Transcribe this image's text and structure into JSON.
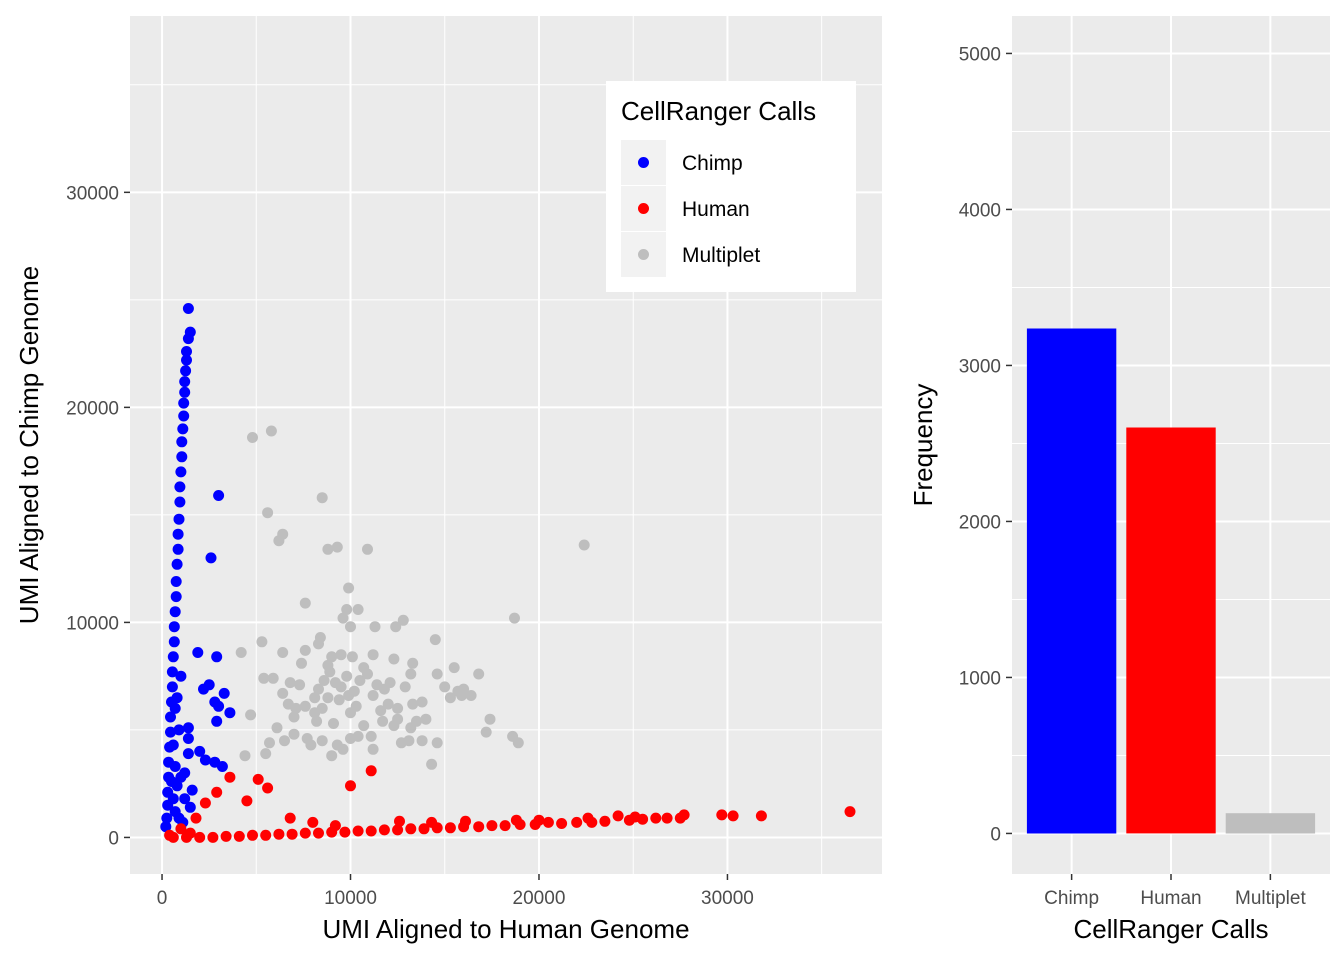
{
  "colors": {
    "panel_bg": "#EBEBEB",
    "grid": "#FFFFFF",
    "axis_text": "#4D4D4D",
    "title_text": "#000000",
    "chimp": "#0000FF",
    "human": "#FF0000",
    "multiplet": "#BEBEBE"
  },
  "chart_data": [
    {
      "type": "scatter",
      "title": "",
      "xlabel": "UMI Aligned to Human Genome",
      "ylabel": "UMI Aligned to Chimp Genome",
      "xlim": [
        -1700,
        38200
      ],
      "ylim": [
        -1700,
        38200
      ],
      "x_ticks": [
        0,
        10000,
        20000,
        30000
      ],
      "y_ticks": [
        0,
        10000,
        20000,
        30000
      ],
      "grid": true,
      "legend": {
        "title": "CellRanger Calls",
        "placement": "top-right",
        "entries": [
          "Chimp",
          "Human",
          "Multiplet"
        ]
      },
      "series": [
        {
          "name": "Chimp",
          "color": "#0000FF",
          "points": [
            [
              1400,
              24600
            ],
            [
              1500,
              23500
            ],
            [
              1400,
              23200
            ],
            [
              1300,
              22600
            ],
            [
              1300,
              22200
            ],
            [
              1250,
              21700
            ],
            [
              1200,
              21200
            ],
            [
              1200,
              20700
            ],
            [
              1150,
              20200
            ],
            [
              1150,
              19600
            ],
            [
              1100,
              19000
            ],
            [
              1050,
              18400
            ],
            [
              1050,
              17700
            ],
            [
              1000,
              17000
            ],
            [
              950,
              16300
            ],
            [
              950,
              15600
            ],
            [
              900,
              14800
            ],
            [
              850,
              14100
            ],
            [
              850,
              13400
            ],
            [
              800,
              12700
            ],
            [
              750,
              11900
            ],
            [
              750,
              11200
            ],
            [
              700,
              10500
            ],
            [
              650,
              9800
            ],
            [
              650,
              9100
            ],
            [
              600,
              8400
            ],
            [
              550,
              7700
            ],
            [
              550,
              7000
            ],
            [
              500,
              6300
            ],
            [
              450,
              5600
            ],
            [
              450,
              4900
            ],
            [
              400,
              4200
            ],
            [
              350,
              3500
            ],
            [
              350,
              2800
            ],
            [
              300,
              2100
            ],
            [
              300,
              1500
            ],
            [
              250,
              900
            ],
            [
              200,
              500
            ],
            [
              3000,
              15900
            ],
            [
              2600,
              13000
            ],
            [
              1900,
              8600
            ],
            [
              2900,
              8400
            ],
            [
              2200,
              6900
            ],
            [
              2500,
              7100
            ],
            [
              2800,
              6300
            ],
            [
              3000,
              6100
            ],
            [
              3300,
              6700
            ],
            [
              3600,
              5800
            ],
            [
              2900,
              5400
            ],
            [
              1400,
              5100
            ],
            [
              1400,
              4600
            ],
            [
              1400,
              3900
            ],
            [
              2000,
              4000
            ],
            [
              2300,
              3600
            ],
            [
              2800,
              3500
            ],
            [
              3200,
              3300
            ],
            [
              800,
              2400
            ],
            [
              1200,
              1800
            ],
            [
              1500,
              1400
            ],
            [
              700,
              1200
            ],
            [
              900,
              900
            ],
            [
              1100,
              700
            ],
            [
              600,
              1800
            ],
            [
              1000,
              2800
            ],
            [
              700,
              3300
            ],
            [
              600,
              4300
            ],
            [
              800,
              6500
            ],
            [
              1000,
              7500
            ],
            [
              900,
              5000
            ],
            [
              1200,
              3000
            ],
            [
              1600,
              2200
            ],
            [
              500,
              2600
            ],
            [
              700,
              6000
            ]
          ]
        },
        {
          "name": "Human",
          "color": "#FF0000",
          "points": [
            [
              36500,
              1200
            ],
            [
              31800,
              1000
            ],
            [
              30300,
              1000
            ],
            [
              29700,
              1050
            ],
            [
              27700,
              1050
            ],
            [
              26800,
              900
            ],
            [
              26200,
              900
            ],
            [
              25500,
              850
            ],
            [
              24800,
              800
            ],
            [
              24200,
              1000
            ],
            [
              23500,
              750
            ],
            [
              22800,
              700
            ],
            [
              22000,
              700
            ],
            [
              21200,
              650
            ],
            [
              20500,
              700
            ],
            [
              19800,
              600
            ],
            [
              19000,
              600
            ],
            [
              18200,
              550
            ],
            [
              17500,
              550
            ],
            [
              16800,
              500
            ],
            [
              16000,
              500
            ],
            [
              15300,
              450
            ],
            [
              14600,
              450
            ],
            [
              13900,
              400
            ],
            [
              13200,
              400
            ],
            [
              12500,
              350
            ],
            [
              11800,
              350
            ],
            [
              11100,
              300
            ],
            [
              10400,
              300
            ],
            [
              9700,
              250
            ],
            [
              9000,
              250
            ],
            [
              8300,
              200
            ],
            [
              7600,
              200
            ],
            [
              6900,
              150
            ],
            [
              6200,
              150
            ],
            [
              5500,
              100
            ],
            [
              4800,
              100
            ],
            [
              4100,
              50
            ],
            [
              3400,
              50
            ],
            [
              2700,
              0
            ],
            [
              2000,
              0
            ],
            [
              1300,
              0
            ],
            [
              600,
              0
            ],
            [
              400,
              100
            ],
            [
              11100,
              3100
            ],
            [
              10000,
              2400
            ],
            [
              5100,
              2700
            ],
            [
              5600,
              2300
            ],
            [
              4500,
              1700
            ],
            [
              3600,
              2800
            ],
            [
              2900,
              2100
            ],
            [
              2300,
              1600
            ],
            [
              1800,
              900
            ],
            [
              1000,
              400
            ],
            [
              1500,
              200
            ],
            [
              6800,
              900
            ],
            [
              8000,
              700
            ],
            [
              9200,
              550
            ],
            [
              12600,
              750
            ],
            [
              14300,
              700
            ],
            [
              16100,
              750
            ],
            [
              18800,
              800
            ],
            [
              22600,
              900
            ],
            [
              25100,
              950
            ],
            [
              27500,
              900
            ],
            [
              20000,
              800
            ]
          ]
        },
        {
          "name": "Multiplet",
          "color": "#BEBEBE",
          "points": [
            [
              4800,
              18600
            ],
            [
              5800,
              18900
            ],
            [
              22400,
              13600
            ],
            [
              8500,
              15800
            ],
            [
              5600,
              15100
            ],
            [
              6400,
              14100
            ],
            [
              6200,
              13800
            ],
            [
              8800,
              13400
            ],
            [
              9300,
              13500
            ],
            [
              10900,
              13400
            ],
            [
              9900,
              11600
            ],
            [
              9800,
              10600
            ],
            [
              10400,
              10600
            ],
            [
              12800,
              10100
            ],
            [
              18700,
              10200
            ],
            [
              7600,
              10900
            ],
            [
              9600,
              10200
            ],
            [
              10000,
              9800
            ],
            [
              11300,
              9800
            ],
            [
              12400,
              9800
            ],
            [
              14500,
              9200
            ],
            [
              8400,
              9300
            ],
            [
              8300,
              9000
            ],
            [
              7600,
              8700
            ],
            [
              6400,
              8600
            ],
            [
              5300,
              9100
            ],
            [
              4200,
              8600
            ],
            [
              9000,
              8400
            ],
            [
              9500,
              8500
            ],
            [
              10100,
              8400
            ],
            [
              11200,
              8500
            ],
            [
              12300,
              8300
            ],
            [
              13300,
              8100
            ],
            [
              14600,
              7600
            ],
            [
              15000,
              7000
            ],
            [
              15700,
              6800
            ],
            [
              17400,
              5500
            ],
            [
              18600,
              4700
            ],
            [
              18900,
              4400
            ],
            [
              14600,
              4400
            ],
            [
              14300,
              3400
            ],
            [
              13100,
              4500
            ],
            [
              12700,
              4400
            ],
            [
              12500,
              5500
            ],
            [
              13500,
              5400
            ],
            [
              14000,
              5500
            ],
            [
              11700,
              5400
            ],
            [
              11100,
              4700
            ],
            [
              10400,
              4700
            ],
            [
              9600,
              4100
            ],
            [
              10000,
              4600
            ],
            [
              9300,
              4300
            ],
            [
              8500,
              4500
            ],
            [
              8200,
              5400
            ],
            [
              7700,
              4600
            ],
            [
              7000,
              4800
            ],
            [
              6500,
              4500
            ],
            [
              5700,
              4400
            ],
            [
              5500,
              3900
            ],
            [
              4400,
              3800
            ],
            [
              4700,
              5700
            ],
            [
              5400,
              7400
            ],
            [
              5900,
              7400
            ],
            [
              6800,
              7200
            ],
            [
              6400,
              6700
            ],
            [
              6700,
              6200
            ],
            [
              7100,
              6000
            ],
            [
              7000,
              5600
            ],
            [
              7600,
              6100
            ],
            [
              8100,
              6500
            ],
            [
              8300,
              6900
            ],
            [
              8600,
              7300
            ],
            [
              8900,
              7700
            ],
            [
              9200,
              7200
            ],
            [
              9500,
              7000
            ],
            [
              9900,
              6600
            ],
            [
              10200,
              6800
            ],
            [
              10500,
              7300
            ],
            [
              10900,
              7600
            ],
            [
              11200,
              6600
            ],
            [
              11800,
              6900
            ],
            [
              12000,
              6200
            ],
            [
              12500,
              6000
            ],
            [
              13300,
              6200
            ],
            [
              13800,
              6300
            ],
            [
              15300,
              6500
            ],
            [
              15900,
              6600
            ],
            [
              16400,
              6600
            ],
            [
              13200,
              7600
            ],
            [
              12100,
              7200
            ],
            [
              10700,
              7900
            ],
            [
              8800,
              8000
            ],
            [
              7400,
              8100
            ],
            [
              9400,
              6400
            ],
            [
              10000,
              5800
            ],
            [
              10700,
              5200
            ],
            [
              11600,
              5900
            ],
            [
              12300,
              5200
            ],
            [
              13200,
              5100
            ],
            [
              13800,
              4500
            ],
            [
              11200,
              4100
            ],
            [
              9000,
              3800
            ],
            [
              7900,
              4300
            ],
            [
              6100,
              5100
            ],
            [
              8500,
              6000
            ],
            [
              9100,
              5300
            ],
            [
              8100,
              5800
            ],
            [
              15500,
              7900
            ],
            [
              16800,
              7600
            ],
            [
              16000,
              6900
            ],
            [
              17200,
              4900
            ],
            [
              9800,
              7500
            ],
            [
              8800,
              6500
            ],
            [
              7300,
              7100
            ],
            [
              10300,
              6100
            ],
            [
              11400,
              7100
            ],
            [
              12900,
              7000
            ]
          ]
        }
      ]
    },
    {
      "type": "bar",
      "title": "",
      "xlabel": "CellRanger Calls",
      "ylabel": "Frequency",
      "categories": [
        "Chimp",
        "Human",
        "Multiplet"
      ],
      "values": [
        3237,
        2602,
        130
      ],
      "colors": [
        "#0000FF",
        "#FF0000",
        "#BEBEBE"
      ],
      "ylim": [
        -260,
        5240
      ],
      "y_ticks": [
        0,
        1000,
        2000,
        3000,
        4000,
        5000
      ],
      "grid": true
    }
  ]
}
